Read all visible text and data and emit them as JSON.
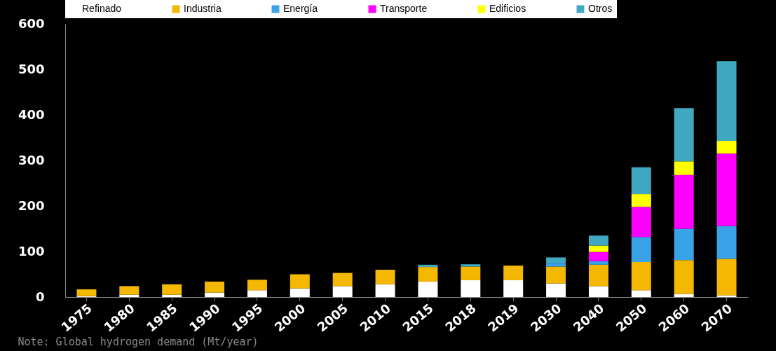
{
  "chart_data": {
    "type": "bar",
    "stacked": true,
    "categories": [
      "1975",
      "1980",
      "1985",
      "1990",
      "1995",
      "2000",
      "2005",
      "2010",
      "2015",
      "2018",
      "2019",
      "2030",
      "2040",
      "2050",
      "2060",
      "2070"
    ],
    "series": [
      {
        "name": "Refinado",
        "color": "#ffffff",
        "values": [
          2,
          5,
          5,
          10,
          15,
          19,
          24,
          28,
          34,
          37,
          37,
          30,
          24,
          15,
          7,
          4
        ]
      },
      {
        "name": "Industria",
        "color": "#f5b800",
        "values": [
          15,
          19,
          23,
          24,
          23,
          31,
          29,
          32,
          32,
          30,
          32,
          37,
          47,
          62,
          74,
          80
        ]
      },
      {
        "name": "Energía",
        "color": "#3aa3e8",
        "values": [
          0,
          0,
          0,
          0,
          0,
          0,
          0,
          0,
          0,
          0,
          0,
          8,
          8,
          55,
          69,
          72
        ]
      },
      {
        "name": "Transporte",
        "color": "#ff00ff",
        "values": [
          0,
          0,
          0,
          0,
          0,
          0,
          0,
          0,
          0,
          0,
          0,
          0,
          20,
          66,
          118,
          159
        ]
      },
      {
        "name": "Edificios",
        "color": "#ffff00",
        "values": [
          0,
          0,
          0,
          0,
          0,
          0,
          0,
          0,
          0,
          0,
          0,
          0,
          14,
          28,
          30,
          28
        ]
      },
      {
        "name": "Otros",
        "color": "#40a8c0",
        "values": [
          0,
          0,
          0,
          0,
          0,
          0,
          0,
          0,
          5,
          5,
          0,
          12,
          22,
          59,
          117,
          175
        ]
      }
    ],
    "ylim": [
      0,
      600
    ],
    "yticks": [
      0,
      100,
      200,
      300,
      400,
      500,
      600
    ],
    "grid": false,
    "legend": "top",
    "annotations": [
      "Note: Global hydrogen demand (Mt/year)"
    ]
  }
}
